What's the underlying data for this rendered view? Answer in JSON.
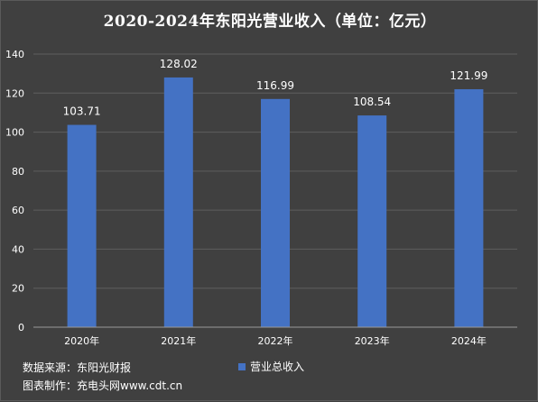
{
  "chart_data": {
    "type": "bar",
    "title": "2020-2024年东阳光营业收入（单位：亿元）",
    "categories": [
      "2020年",
      "2021年",
      "2022年",
      "2023年",
      "2024年"
    ],
    "series": [
      {
        "name": "营业总收入",
        "values": [
          103.71,
          128.02,
          116.99,
          108.54,
          121.99
        ]
      }
    ],
    "data_labels": [
      "103.71",
      "128.02",
      "116.99",
      "108.54",
      "121.99"
    ],
    "yticks": [
      0,
      20,
      40,
      60,
      80,
      100,
      120,
      140
    ],
    "ylim": [
      0,
      140
    ],
    "grid": true,
    "legend_position": "bottom",
    "bar_color": "#4472C4"
  },
  "footer": {
    "source": "数据来源：东阳光财报",
    "maker": "图表制作：充电头网www.cdt.cn"
  }
}
